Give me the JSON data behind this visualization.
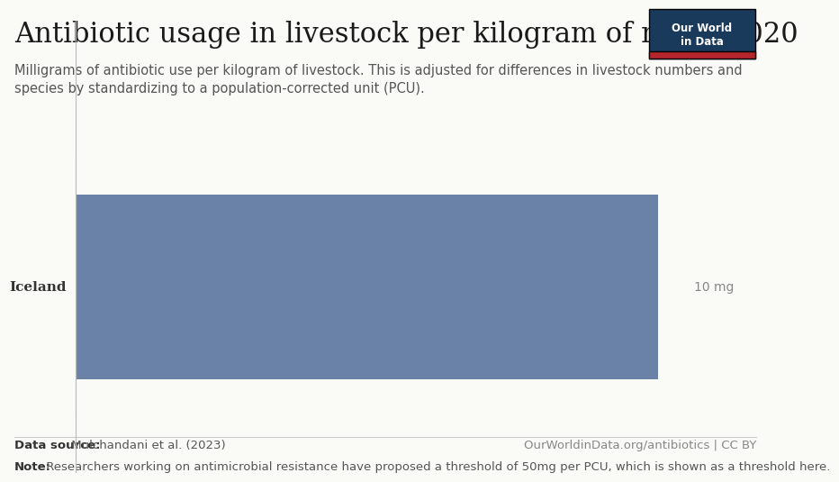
{
  "title": "Antibiotic usage in livestock per kilogram of meat, 2020",
  "subtitle": "Milligrams of antibiotic use per kilogram of livestock. This is adjusted for differences in livestock numbers and\nspecies by standardizing to a population-corrected unit (PCU).",
  "country": "Iceland",
  "value": 10,
  "value_label": "10 mg",
  "bar_color": "#6b82a8",
  "background_color": "#fafaf7",
  "data_source_bold": "Data source:",
  "data_source_rest": " Mulchandani et al. (2023)",
  "data_source_right": "OurWorldinData.org/antibiotics | CC BY",
  "note_bold": "Note:",
  "note_rest": " Researchers working on antimicrobial resistance have proposed a threshold of 50mg per PCU, which is shown as a threshold here.",
  "owid_box_color": "#1a3a5c",
  "owid_box_red": "#b5272d",
  "owid_text_line1": "Our World",
  "owid_text_line2": "in Data",
  "xlim_max": 10.5,
  "title_fontsize": 22,
  "subtitle_fontsize": 10.5,
  "footer_fontsize": 9.5,
  "country_fontsize": 11,
  "value_label_fontsize": 10
}
